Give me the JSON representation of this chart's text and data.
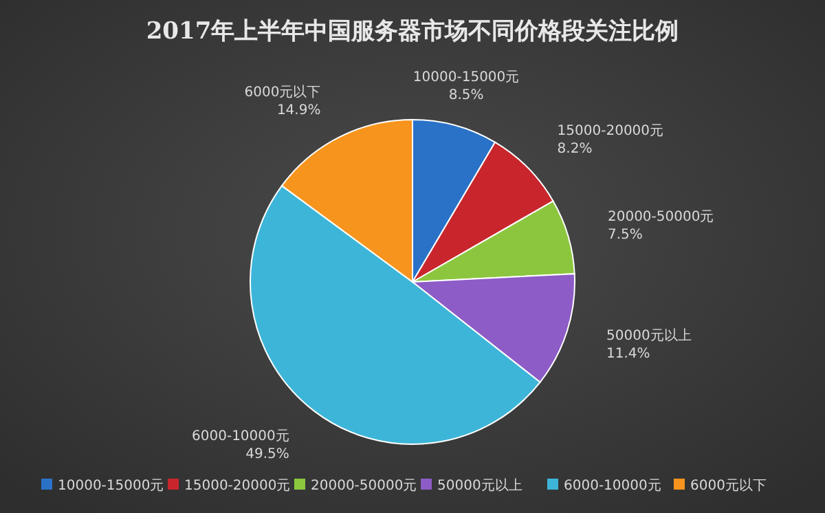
{
  "chart_data": {
    "type": "pie",
    "title": "2017年上半年中国服务器市场不同价格段关注比例",
    "categories": [
      "10000-15000元",
      "15000-20000元",
      "20000-50000元",
      "50000元以上",
      "6000-10000元",
      "6000元以下"
    ],
    "values": [
      8.5,
      8.2,
      7.5,
      11.4,
      49.5,
      14.9
    ],
    "colors": [
      "#2a72c8",
      "#c8262c",
      "#8cc63e",
      "#8d5cc6",
      "#3db5d8",
      "#f7941d"
    ],
    "value_labels": [
      "8.5%",
      "8.2%",
      "7.5%",
      "11.4%",
      "49.5%",
      "14.9%"
    ],
    "legend": "bottom"
  }
}
